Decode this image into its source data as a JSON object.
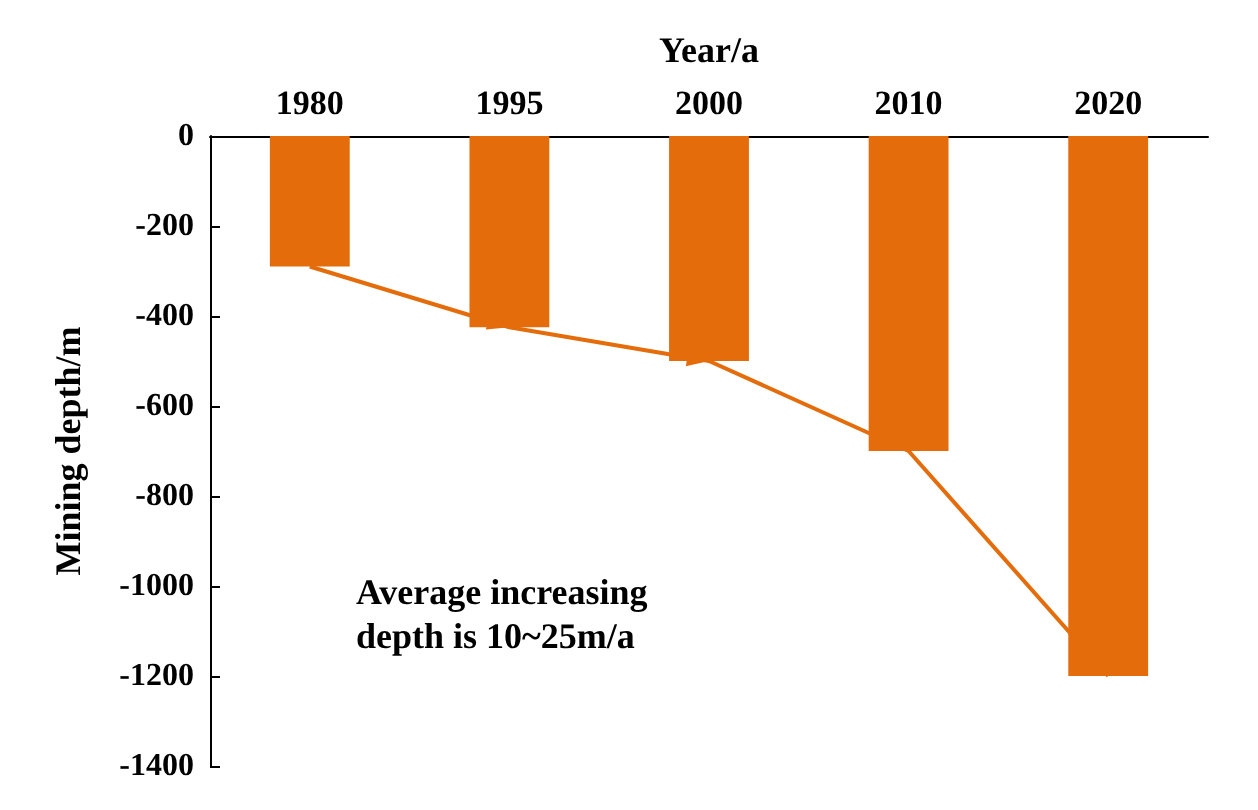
{
  "chart_data": {
    "type": "bar",
    "xlabel": "Year/a",
    "ylabel": "Mining depth/m",
    "categories": [
      "1980",
      "1995",
      "2000",
      "2010",
      "2020"
    ],
    "series": [
      {
        "color": "#e46c0a",
        "values": [
          -290,
          -425,
          -500,
          -700,
          -1200
        ]
      },
      {
        "type": "line",
        "color": "#e46c0a",
        "values": [
          -290,
          -425,
          -500,
          -700,
          -1200
        ]
      }
    ],
    "ylim": [
      -1400,
      0
    ],
    "yticks": [
      0,
      -200,
      -400,
      -600,
      -800,
      -1000,
      -1200,
      -1400
    ],
    "grid": false,
    "annotations": [
      "Average increasing\ndepth is 10~25m/a"
    ]
  }
}
